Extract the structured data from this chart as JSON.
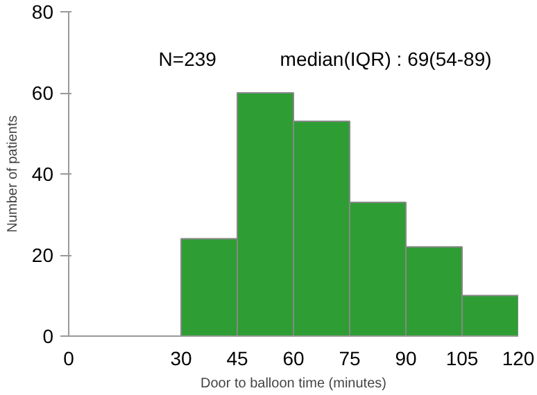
{
  "chart_data": {
    "type": "histogram",
    "bins": [
      30,
      45,
      60,
      75,
      90,
      105,
      120
    ],
    "values": [
      24,
      60,
      53,
      33,
      22,
      10
    ],
    "color": "#2e9e34",
    "xlabel": "Door to balloon time (minutes)",
    "ylabel": "Number of patients",
    "xlim": [
      0,
      120
    ],
    "xticks": [
      0,
      30,
      45,
      60,
      75,
      90,
      105,
      120
    ],
    "ylim": [
      0,
      80
    ],
    "yticks": [
      0,
      20,
      40,
      60,
      80
    ],
    "annotations": [
      "N=239",
      "median(IQR) : 69(54-89)"
    ],
    "grid": false
  }
}
